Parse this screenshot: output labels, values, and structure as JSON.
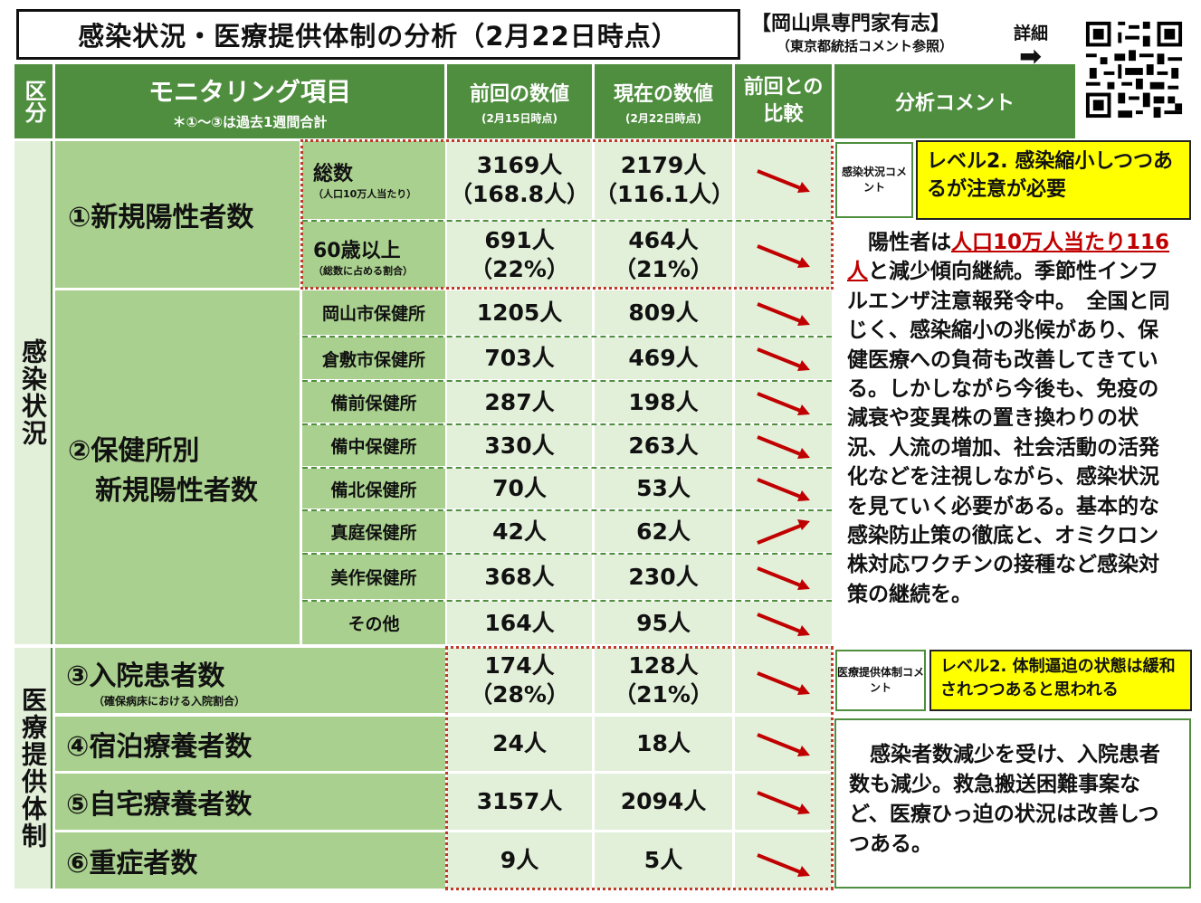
{
  "title": "感染状況・医療提供体制の分析（2月22日時点）",
  "org": "【岡山県専門家有志】",
  "org_sub": "（東京都統括コメント参照）",
  "detail_label": "詳細",
  "arrow_glyph": "➡",
  "header": {
    "category": "区分",
    "item": "モニタリング項目",
    "item_note": "＊①～③は過去1週間合計",
    "prev": "前回の数値",
    "prev_date": "(2月15日時点)",
    "curr": "現在の数値",
    "curr_date": "(2月22日時点)",
    "compare": "前回との比較",
    "comment": "分析コメント"
  },
  "sections": {
    "infection": "感染状況",
    "medical": "医療提供体制"
  },
  "rows": {
    "new_positive": {
      "label": "①新規陽性者数",
      "total": {
        "label": "総数",
        "note": "（人口10万人当たり）",
        "prev": "3169人",
        "prev2": "（168.8人）",
        "curr": "2179人",
        "curr2": "（116.1人）",
        "trend": "down"
      },
      "over60": {
        "label": "60歳以上",
        "note": "（総数に占める割合）",
        "prev": "691人",
        "prev2": "（22%）",
        "curr": "464人",
        "curr2": "（21%）",
        "trend": "down"
      }
    },
    "by_center": {
      "label1": "②保健所別",
      "label2": "新規陽性者数",
      "items": [
        {
          "name": "岡山市保健所",
          "prev": "1205人",
          "curr": "809人",
          "trend": "down"
        },
        {
          "name": "倉敷市保健所",
          "prev": "703人",
          "curr": "469人",
          "trend": "down"
        },
        {
          "name": "備前保健所",
          "prev": "287人",
          "curr": "198人",
          "trend": "down"
        },
        {
          "name": "備中保健所",
          "prev": "330人",
          "curr": "263人",
          "trend": "down"
        },
        {
          "name": "備北保健所",
          "prev": "70人",
          "curr": "53人",
          "trend": "down"
        },
        {
          "name": "真庭保健所",
          "prev": "42人",
          "curr": "62人",
          "trend": "up"
        },
        {
          "name": "美作保健所",
          "prev": "368人",
          "curr": "230人",
          "trend": "down"
        },
        {
          "name": "その他",
          "prev": "164人",
          "curr": "95人",
          "trend": "down"
        }
      ]
    },
    "hospital": {
      "label": "③入院患者数",
      "note": "（確保病床における入院割合）",
      "prev": "174人",
      "prev2": "（28%）",
      "curr": "128人",
      "curr2": "（21%）",
      "trend": "down"
    },
    "lodging": {
      "label": "④宿泊療養者数",
      "prev": "24人",
      "curr": "18人",
      "trend": "down"
    },
    "home": {
      "label": "⑤自宅療養者数",
      "prev": "3157人",
      "curr": "2094人",
      "trend": "down"
    },
    "severe": {
      "label": "⑥重症者数",
      "prev": "9人",
      "curr": "5人",
      "trend": "down"
    }
  },
  "comments": {
    "infection_label": "感染状況コメント",
    "infection_level": "レベル2. 感染縮小しつつあるが注意が必要",
    "infection_text_pre": "陽性者は",
    "infection_text_red": "人口10万人当たり116人",
    "infection_text_post": "と減少傾向継続。季節性インフルエンザ注意報発令中。　全国と同じく、感染縮小の兆候があり、保健医療への負荷も改善してきている。しかしながら今後も、免疫の減衰や変異株の置き換わりの状況、人流の増加、社会活動の活発化などを注視しながら、感染状況を見ていく必要がある。基本的な感染防止策の徹底と、オミクロン株対応ワクチンの接種など感染対策の継続を。",
    "medical_label": "医療提供体制コメント",
    "medical_level": "レベル2. 体制逼迫の状態は緩和されつつあると思われる",
    "medical_text": "感染者数減少を受け、入院患者数も減少。救急搬送困難事案など、医療ひっ迫の状況は改善しつつある。"
  },
  "colors": {
    "arrow": "#c00000",
    "header": "#4e8e3e",
    "green": "#a9d08e",
    "pale": "#e2efd9",
    "yellow": "#ffff00"
  }
}
